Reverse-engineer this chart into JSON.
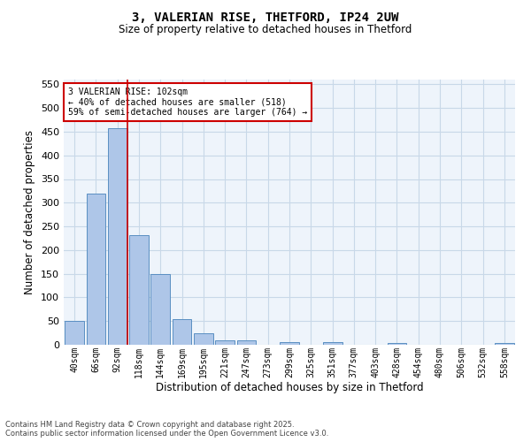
{
  "title1": "3, VALERIAN RISE, THETFORD, IP24 2UW",
  "title2": "Size of property relative to detached houses in Thetford",
  "xlabel": "Distribution of detached houses by size in Thetford",
  "ylabel": "Number of detached properties",
  "categories": [
    "40sqm",
    "66sqm",
    "92sqm",
    "118sqm",
    "144sqm",
    "169sqm",
    "195sqm",
    "221sqm",
    "247sqm",
    "273sqm",
    "299sqm",
    "325sqm",
    "351sqm",
    "377sqm",
    "403sqm",
    "428sqm",
    "454sqm",
    "480sqm",
    "506sqm",
    "532sqm",
    "558sqm"
  ],
  "values": [
    50,
    320,
    457,
    232,
    150,
    54,
    25,
    10,
    9,
    0,
    5,
    0,
    5,
    0,
    0,
    3,
    0,
    0,
    0,
    0,
    4
  ],
  "bar_color": "#aec6e8",
  "bar_edge_color": "#5a8fc2",
  "red_line_index": 2,
  "annotation_text": "3 VALERIAN RISE: 102sqm\n← 40% of detached houses are smaller (518)\n59% of semi-detached houses are larger (764) →",
  "annotation_box_color": "#ffffff",
  "annotation_box_edge_color": "#cc0000",
  "vline_color": "#cc0000",
  "grid_color": "#c8d8e8",
  "bg_color": "#eef4fb",
  "footer1": "Contains HM Land Registry data © Crown copyright and database right 2025.",
  "footer2": "Contains public sector information licensed under the Open Government Licence v3.0.",
  "ylim": [
    0,
    560
  ],
  "yticks": [
    0,
    50,
    100,
    150,
    200,
    250,
    300,
    350,
    400,
    450,
    500,
    550
  ]
}
